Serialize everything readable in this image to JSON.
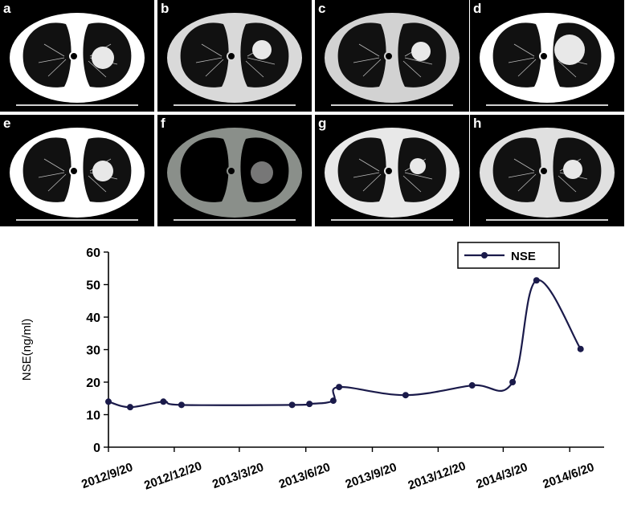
{
  "panels": [
    {
      "label": "a",
      "bg": "#000000",
      "ring": "#ffffff"
    },
    {
      "label": "b",
      "bg": "#000000",
      "ring": "#d9d9d9"
    },
    {
      "label": "c",
      "bg": "#000000",
      "ring": "#d2d2d2"
    },
    {
      "label": "d",
      "bg": "#000000",
      "ring": "#ffffff"
    },
    {
      "label": "e",
      "bg": "#000000",
      "ring": "#ffffff"
    },
    {
      "label": "f",
      "bg": "#000000",
      "ring": "#8a8f8a"
    },
    {
      "label": "g",
      "bg": "#000000",
      "ring": "#e8e8e8"
    },
    {
      "label": "h",
      "bg": "#000000",
      "ring": "#e0e0e0"
    }
  ],
  "chart_data": {
    "type": "line",
    "title": "",
    "ylabel": "NSE(ng/ml)",
    "xlabel": "",
    "ylim": [
      0,
      60
    ],
    "yticks": [
      0,
      10,
      20,
      30,
      40,
      50,
      60
    ],
    "xticks": [
      "2012/9/20",
      "2012/12/20",
      "2013/3/20",
      "2013/6/20",
      "2013/9/20",
      "2013/12/20",
      "2014/3/20",
      "2014/6/20"
    ],
    "legend": "top-right",
    "series": [
      {
        "name": "NSE",
        "color": "#1a1a4a",
        "points": [
          {
            "date": "2012-09-20",
            "value": 14
          },
          {
            "date": "2012-10-20",
            "value": 12.3
          },
          {
            "date": "2012-12-05",
            "value": 14
          },
          {
            "date": "2012-12-30",
            "value": 13
          },
          {
            "date": "2013-06-01",
            "value": 13
          },
          {
            "date": "2013-06-25",
            "value": 13.3
          },
          {
            "date": "2013-07-28",
            "value": 14.3
          },
          {
            "date": "2013-08-05",
            "value": 18.5
          },
          {
            "date": "2013-11-05",
            "value": 16
          },
          {
            "date": "2014-02-05",
            "value": 19
          },
          {
            "date": "2014-04-02",
            "value": 20
          },
          {
            "date": "2014-05-05",
            "value": 51.3
          },
          {
            "date": "2014-07-05",
            "value": 30.2
          }
        ]
      }
    ]
  }
}
